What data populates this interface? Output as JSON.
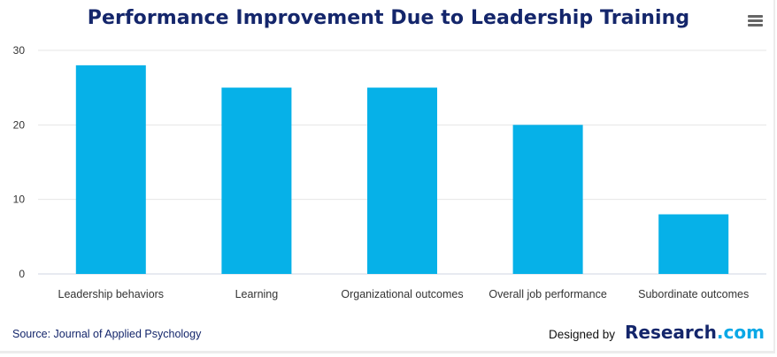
{
  "chart_data": {
    "type": "bar",
    "title": "Performance Improvement Due to Leadership Training",
    "categories": [
      "Leadership behaviors",
      "Learning",
      "Organizational outcomes",
      "Overall job performance",
      "Subordinate outcomes"
    ],
    "values": [
      28,
      25,
      25,
      20,
      8
    ],
    "yticks": [
      0,
      10,
      20,
      30
    ],
    "ylim": [
      0,
      30
    ],
    "grid": true,
    "bar_color": "#06b1e8"
  },
  "footer": {
    "source": "Source: Journal of Applied Psychology",
    "designed_by": "Designed by",
    "brand_main": "Research",
    "brand_suffix": ".com"
  },
  "menu": {
    "icon": "hamburger-menu-icon"
  }
}
